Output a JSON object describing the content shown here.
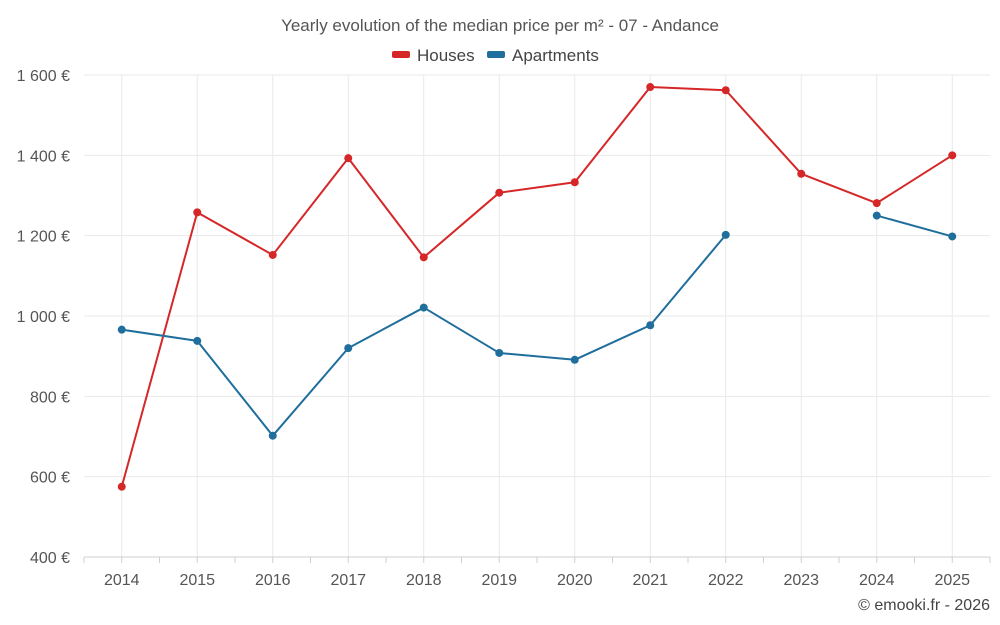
{
  "chart_data": {
    "type": "line",
    "title": "Yearly evolution of the median price per m² - 07 - Andance",
    "categories": [
      "2014",
      "2015",
      "2016",
      "2017",
      "2018",
      "2019",
      "2020",
      "2021",
      "2022",
      "2023",
      "2024",
      "2025"
    ],
    "series": [
      {
        "name": "Houses",
        "color": "#d62728",
        "values": [
          575,
          1258,
          1152,
          1393,
          1146,
          1307,
          1333,
          1570,
          1562,
          1354,
          1281,
          1400
        ]
      },
      {
        "name": "Apartments",
        "color": "#1f6e9c",
        "values": [
          966,
          938,
          702,
          920,
          1021,
          908,
          891,
          977,
          1202,
          null,
          1250,
          1198
        ]
      }
    ],
    "ylim": [
      400,
      1600
    ],
    "yticks": [
      400,
      600,
      800,
      1000,
      1200,
      1400,
      1600
    ],
    "ytick_labels": [
      "400 €",
      "600 €",
      "800 €",
      "1 000 €",
      "1 200 €",
      "1 400 €",
      "1 600 €"
    ],
    "xlabel": "",
    "ylabel": "",
    "legend_position": "top-center",
    "grid": true
  },
  "credit": "© emooki.fr - 2026"
}
